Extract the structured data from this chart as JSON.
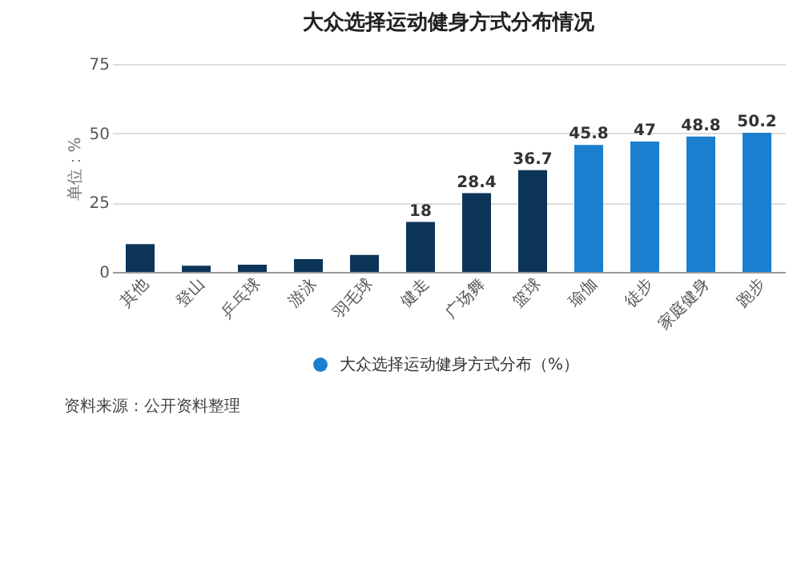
{
  "chart_data": {
    "type": "bar",
    "title": "大众选择运动健身方式分布情况",
    "ylabel": "单位：%",
    "categories": [
      "其他",
      "登山",
      "乒乓球",
      "游泳",
      "羽毛球",
      "健走",
      "广场舞",
      "篮球",
      "瑜伽",
      "徒步",
      "家庭健身",
      "跑步"
    ],
    "series": [
      {
        "name": "大众选择运动健身方式分布（%）",
        "color": "#1a7fcf",
        "colors": [
          "#0d3559",
          "#0d3559",
          "#0d3559",
          "#0d3559",
          "#0d3559",
          "#0d3559",
          "#0d3559",
          "#0d3559",
          "#1a7fcf",
          "#1a7fcf",
          "#1a7fcf",
          "#1a7fcf"
        ],
        "values": [
          10,
          2.2,
          2.6,
          4.6,
          6.1,
          18,
          28.4,
          36.7,
          45.8,
          47,
          48.8,
          50.2
        ],
        "value_labels": [
          null,
          null,
          null,
          null,
          null,
          "18",
          "28.4",
          "36.7",
          "45.8",
          "47",
          "48.8",
          "50.2"
        ]
      }
    ],
    "ylim": [
      0,
      75
    ],
    "yticks": [
      0,
      25,
      50,
      75
    ],
    "grid": "y",
    "legend": "bottom",
    "annotations": [
      "资料来源：公开资料整理"
    ]
  }
}
